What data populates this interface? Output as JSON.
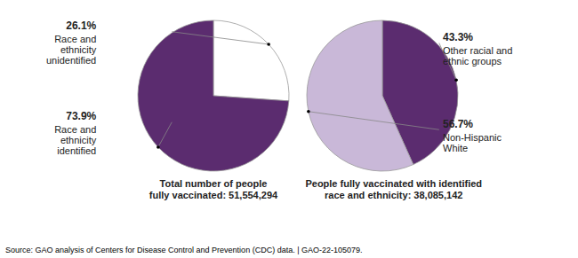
{
  "chart_data": [
    {
      "type": "pie",
      "title": "Total number of people\nfully vaccinated: 51,554,294",
      "categories": [
        "Race and\nethnicity\nunidentified",
        "Race and\nethnicity\nidentified"
      ],
      "values": [
        26.1,
        73.9
      ],
      "value_labels": [
        "26.1%",
        "73.9%"
      ],
      "colors": [
        "white",
        "#5b2c6f"
      ],
      "data_labels": true,
      "annotations": [
        "Source: GAO analysis of Centers for Disease Control and Prevention (CDC) data.  |  GAO-22-105079."
      ]
    },
    {
      "type": "pie",
      "title": "People fully vaccinated with identified\nrace and ethnicity: 38,085,142",
      "categories": [
        "Other racial and\nethnic groups",
        "Non-Hispanic\nWhite"
      ],
      "values": [
        43.3,
        56.7
      ],
      "value_labels": [
        "43.3%",
        "56.7%"
      ],
      "colors": [
        "#5b2c6f",
        "#c9b8d8"
      ],
      "data_labels": true
    }
  ]
}
